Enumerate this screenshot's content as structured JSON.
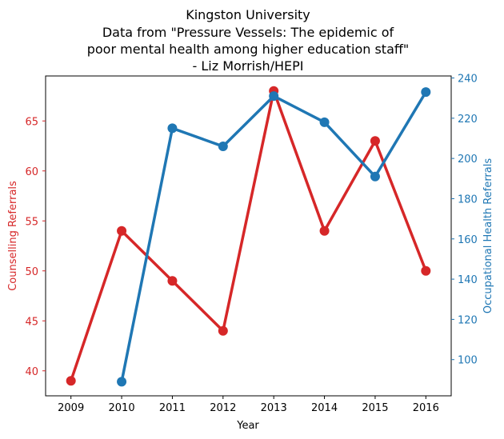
{
  "chart_data": {
    "type": "line",
    "title": "Kingston University",
    "subtitle_lines": [
      "Data from \"Pressure Vessels: The epidemic of",
      "poor mental health among higher education staff\"",
      "- Liz Morrish/HEPI"
    ],
    "xlabel": "Year",
    "ylabel_left": "Counselling Referrals",
    "ylabel_right": "Occupational Health Referrals",
    "x_ticks": [
      "2009",
      "2010",
      "2011",
      "2012",
      "2013",
      "2014",
      "2015",
      "2016"
    ],
    "y_left_ticks": [
      40,
      45,
      50,
      55,
      60,
      65
    ],
    "y_right_ticks": [
      100,
      120,
      140,
      160,
      180,
      200,
      220,
      240
    ],
    "ylim_left": [
      37.5,
      69.5
    ],
    "ylim_right": [
      82,
      241
    ],
    "xlim": [
      2008.5,
      2016.5
    ],
    "grid": false,
    "series": [
      {
        "axis": "left",
        "color": "#d62728",
        "x": [
          2009,
          2010,
          2011,
          2012,
          2013,
          2014,
          2015,
          2016
        ],
        "values": [
          39,
          54,
          49,
          44,
          68,
          54,
          63,
          50
        ]
      },
      {
        "axis": "right",
        "color": "#1f77b4",
        "x": [
          2010,
          2011,
          2012,
          2013,
          2014,
          2015,
          2016
        ],
        "values": [
          89,
          215,
          206,
          231,
          218,
          191,
          233
        ]
      }
    ]
  }
}
